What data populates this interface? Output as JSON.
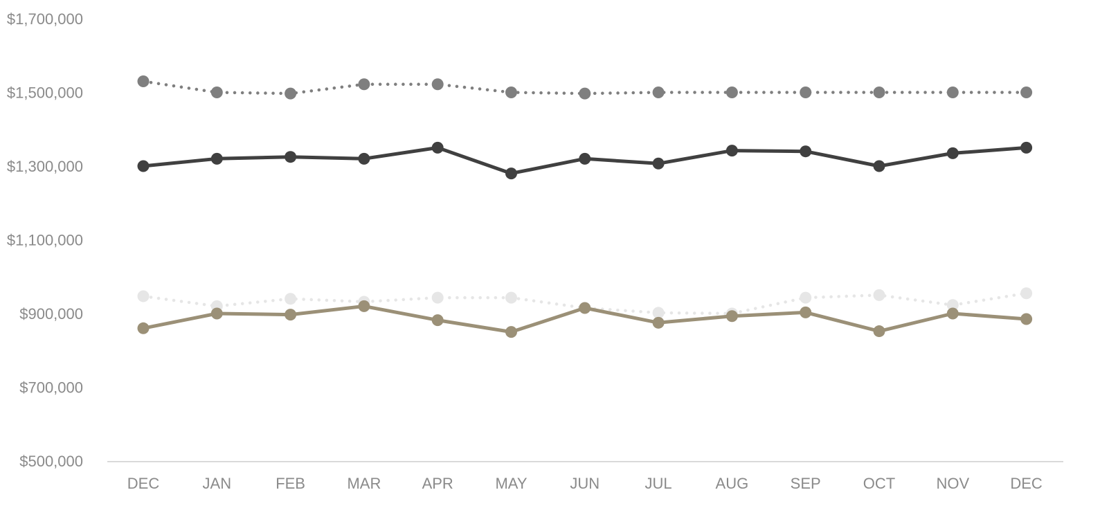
{
  "chart_data": {
    "type": "line",
    "categories": [
      "DEC",
      "JAN",
      "FEB",
      "MAR",
      "APR",
      "MAY",
      "JUN",
      "JUL",
      "AUG",
      "SEP",
      "OCT",
      "NOV",
      "DEC"
    ],
    "ylim": [
      500000,
      1700000
    ],
    "yticks": [
      500000,
      700000,
      900000,
      1100000,
      1300000,
      1500000,
      1700000
    ],
    "ytick_labels": [
      "$500,000",
      "$700,000",
      "$900,000",
      "$1,100,000",
      "$1,300,000",
      "$1,500,000",
      "$1,700,000"
    ],
    "grid": false,
    "legend": "none",
    "series": [
      {
        "values": [
          1530000,
          1500000,
          1497000,
          1522000,
          1522000,
          1500000,
          1497000,
          1500000,
          1500000,
          1500000,
          1500000,
          1500000,
          1500000
        ],
        "color": "#7f7f7f",
        "style": "dotted"
      },
      {
        "values": [
          1300000,
          1320000,
          1325000,
          1320000,
          1350000,
          1280000,
          1320000,
          1307000,
          1342000,
          1340000,
          1300000,
          1335000,
          1350000
        ],
        "color": "#404040",
        "style": "solid"
      },
      {
        "values": [
          947000,
          920000,
          940000,
          932000,
          943000,
          943000,
          915000,
          902000,
          900000,
          943000,
          950000,
          923000,
          955000
        ],
        "color": "#e6e6e6",
        "style": "dotted"
      },
      {
        "values": [
          860000,
          900000,
          897000,
          920000,
          882000,
          850000,
          915000,
          875000,
          893000,
          903000,
          852000,
          900000,
          885000
        ],
        "color": "#9b9077",
        "style": "solid"
      }
    ]
  }
}
